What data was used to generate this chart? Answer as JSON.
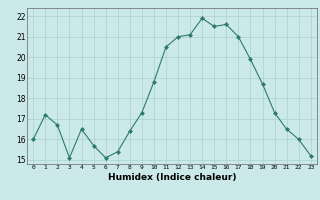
{
  "x": [
    0,
    1,
    2,
    3,
    4,
    5,
    6,
    7,
    8,
    9,
    10,
    11,
    12,
    13,
    14,
    15,
    16,
    17,
    18,
    19,
    20,
    21,
    22,
    23
  ],
  "y": [
    16.0,
    17.2,
    16.7,
    15.1,
    16.5,
    15.7,
    15.1,
    15.4,
    16.4,
    17.3,
    18.8,
    20.5,
    21.0,
    21.1,
    21.9,
    21.5,
    21.6,
    21.0,
    19.9,
    18.7,
    17.3,
    16.5,
    16.0,
    15.2
  ],
  "line_color": "#2d7a6e",
  "marker": "D",
  "marker_size": 2.0,
  "bg_color": "#cce9e9",
  "grid_color": "#aad0d0",
  "xlabel": "Humidex (Indice chaleur)",
  "ylim": [
    14.8,
    22.4
  ],
  "xlim": [
    -0.5,
    23.5
  ],
  "yticks": [
    15,
    16,
    17,
    18,
    19,
    20,
    21,
    22
  ],
  "xticks": [
    0,
    1,
    2,
    3,
    4,
    5,
    6,
    7,
    8,
    9,
    10,
    11,
    12,
    13,
    14,
    15,
    16,
    17,
    18,
    19,
    20,
    21,
    22,
    23
  ]
}
